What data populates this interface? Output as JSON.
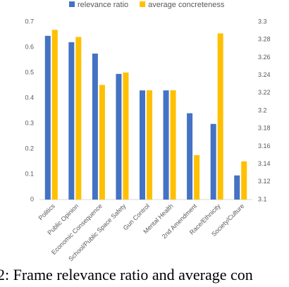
{
  "chart_data": {
    "type": "bar",
    "categories": [
      "Politics",
      "Public Opinion",
      "Economic Consequence",
      "School/Public Space Safety",
      "Gun Control",
      "Mental Health",
      "2nd Amendment",
      "Race/Ethnicity",
      "Society/Culture"
    ],
    "series": [
      {
        "name": "relevance ratio",
        "color": "#4472c4",
        "values": [
          0.645,
          0.62,
          0.575,
          0.495,
          0.43,
          0.43,
          0.34,
          0.298,
          0.095
        ]
      },
      {
        "name": "average concreteness",
        "color": "#ffc000",
        "axis": "y2",
        "values": [
          3.291,
          3.283,
          3.229,
          3.243,
          3.223,
          3.223,
          3.15,
          3.287,
          3.143
        ]
      }
    ],
    "ylim": [
      0,
      0.7
    ],
    "yticks": [
      0,
      0.1,
      0.2,
      0.3,
      0.4,
      0.5,
      0.6,
      0.7
    ],
    "y2lim": [
      3.1,
      3.3
    ],
    "y2ticks": [
      3.1,
      3.12,
      3.14,
      3.16,
      3.18,
      3.2,
      3.22,
      3.24,
      3.26,
      3.28,
      3.3
    ],
    "legend": "top",
    "caption": "2: Frame relevance ratio and average con"
  }
}
